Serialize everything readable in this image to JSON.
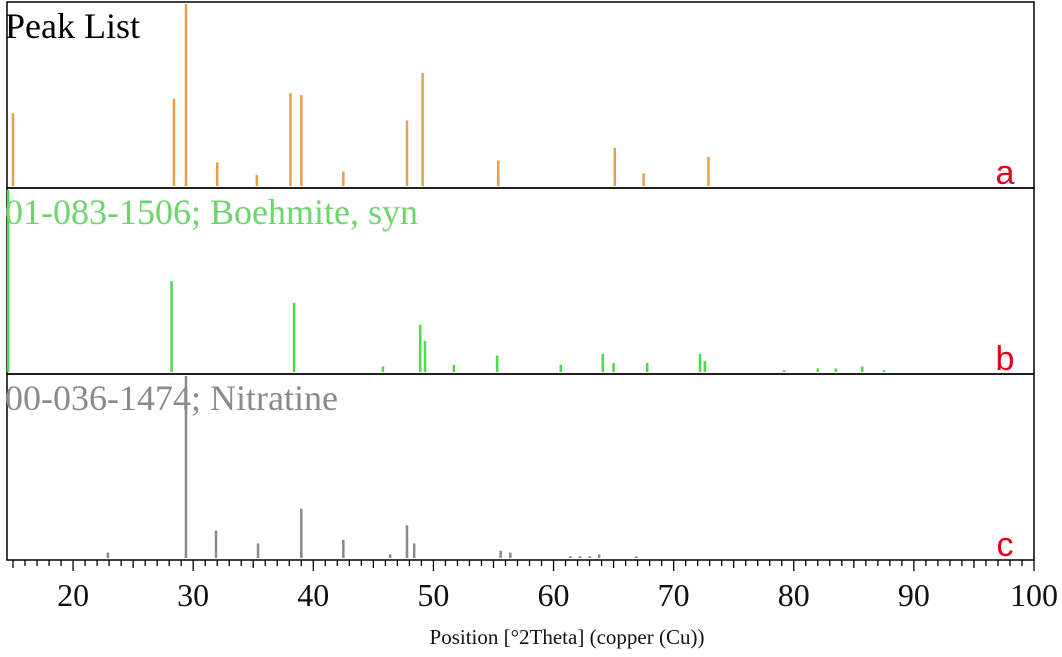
{
  "chart_data": {
    "type": "bar",
    "xlabel": "Position [°2Theta] (copper (Cu))",
    "xlim": [
      14.5,
      100
    ],
    "x_tick_labels": [
      "20",
      "30",
      "40",
      "50",
      "60",
      "70",
      "80",
      "90",
      "100"
    ],
    "x_ticks": [
      20,
      30,
      40,
      50,
      60,
      70,
      80,
      90,
      100
    ],
    "grid": false,
    "panels": [
      {
        "title": "Peak List",
        "letter": "a",
        "color": "#E5A04B",
        "title_color": "#000000",
        "letter_color": "#E0001B",
        "ylim": [
          0,
          100
        ],
        "peaks": [
          {
            "x": 15.0,
            "y": 40
          },
          {
            "x": 28.4,
            "y": 48
          },
          {
            "x": 29.4,
            "y": 100
          },
          {
            "x": 32.0,
            "y": 13
          },
          {
            "x": 35.3,
            "y": 6
          },
          {
            "x": 38.1,
            "y": 51
          },
          {
            "x": 39.0,
            "y": 50
          },
          {
            "x": 42.5,
            "y": 8
          },
          {
            "x": 47.8,
            "y": 36
          },
          {
            "x": 49.1,
            "y": 62
          },
          {
            "x": 55.4,
            "y": 14
          },
          {
            "x": 65.1,
            "y": 21
          },
          {
            "x": 67.5,
            "y": 7
          },
          {
            "x": 72.9,
            "y": 16
          }
        ]
      },
      {
        "title": "01-083-1506; Boehmite, syn",
        "letter": "b",
        "color": "#4CD94C",
        "title_color": "#6CD56C",
        "letter_color": "#E0001B",
        "ylim": [
          0,
          100
        ],
        "peaks": [
          {
            "x": 14.6,
            "y": 100
          },
          {
            "x": 28.2,
            "y": 50
          },
          {
            "x": 38.4,
            "y": 38
          },
          {
            "x": 45.8,
            "y": 3
          },
          {
            "x": 48.9,
            "y": 26
          },
          {
            "x": 49.3,
            "y": 17
          },
          {
            "x": 51.7,
            "y": 4
          },
          {
            "x": 55.3,
            "y": 9
          },
          {
            "x": 60.6,
            "y": 4
          },
          {
            "x": 64.1,
            "y": 10
          },
          {
            "x": 65.0,
            "y": 5
          },
          {
            "x": 67.8,
            "y": 5
          },
          {
            "x": 72.2,
            "y": 10
          },
          {
            "x": 72.6,
            "y": 6
          },
          {
            "x": 79.2,
            "y": 1
          },
          {
            "x": 82.0,
            "y": 2
          },
          {
            "x": 83.5,
            "y": 2
          },
          {
            "x": 85.7,
            "y": 3
          },
          {
            "x": 87.5,
            "y": 1
          }
        ]
      },
      {
        "title": "00-036-1474; Nitratine",
        "letter": "c",
        "color": "#8A8A8A",
        "title_color": "#8A8A8A",
        "letter_color": "#E0001B",
        "ylim": [
          0,
          100
        ],
        "peaks": [
          {
            "x": 22.9,
            "y": 3
          },
          {
            "x": 29.4,
            "y": 100
          },
          {
            "x": 31.9,
            "y": 15
          },
          {
            "x": 35.4,
            "y": 8
          },
          {
            "x": 39.0,
            "y": 27
          },
          {
            "x": 42.5,
            "y": 10
          },
          {
            "x": 46.4,
            "y": 2
          },
          {
            "x": 47.8,
            "y": 18
          },
          {
            "x": 48.4,
            "y": 8
          },
          {
            "x": 55.6,
            "y": 4
          },
          {
            "x": 56.4,
            "y": 3
          },
          {
            "x": 61.4,
            "y": 1
          },
          {
            "x": 62.2,
            "y": 1
          },
          {
            "x": 63.0,
            "y": 1
          },
          {
            "x": 63.8,
            "y": 2
          },
          {
            "x": 66.9,
            "y": 1
          }
        ]
      }
    ]
  }
}
